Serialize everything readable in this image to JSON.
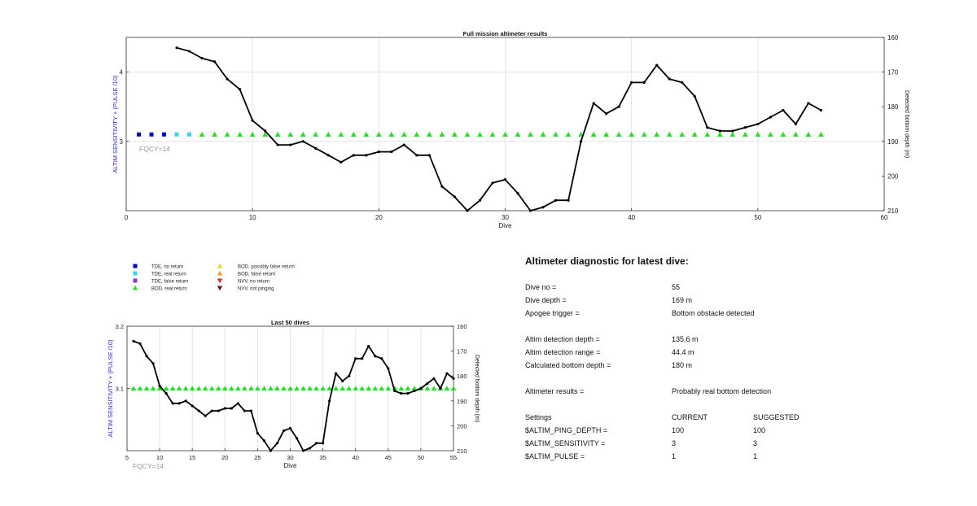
{
  "chart_data": [
    {
      "type": "line",
      "title": "Full mission altimeter results",
      "xlabel": "Dive",
      "ylabel": "ALTIM SENSITIVITY + (PULSE /10)",
      "ylabel_right": "Detected bottom depth (m)",
      "xlim": [
        0,
        60
      ],
      "xticks": [
        "0",
        "10",
        "20",
        "30",
        "40",
        "50",
        "60"
      ],
      "ylim_left": [
        2.0,
        4.5
      ],
      "yticks_left": [
        "3",
        "4"
      ],
      "ylim_right": [
        210,
        160
      ],
      "yticks_right": [
        "160",
        "170",
        "180",
        "190",
        "200",
        "210"
      ],
      "annotation": "FQCY=14",
      "grid": true,
      "series": [
        {
          "name": "Detected bottom depth",
          "axis": "right",
          "color": "#000000",
          "x": [
            4,
            5,
            6,
            7,
            8,
            9,
            10,
            11,
            12,
            13,
            14,
            15,
            16,
            17,
            18,
            19,
            20,
            21,
            22,
            23,
            24,
            25,
            26,
            27,
            28,
            29,
            30,
            31,
            32,
            33,
            34,
            35,
            36,
            37,
            38,
            39,
            40,
            41,
            42,
            43,
            44,
            45,
            46,
            47,
            48,
            49,
            50,
            51,
            52,
            53,
            54,
            55
          ],
          "y": [
            163,
            164,
            166,
            167,
            172,
            175,
            184,
            187,
            191,
            191,
            190,
            192,
            194,
            196,
            194,
            194,
            193,
            193,
            191,
            194,
            194,
            203,
            206,
            210,
            207,
            202,
            201,
            205,
            210,
            209,
            207,
            207,
            190,
            179,
            182,
            180,
            173,
            173,
            168,
            172,
            173,
            177,
            186,
            187,
            187,
            186,
            185,
            183,
            181,
            185,
            179,
            181
          ]
        },
        {
          "name": "TDE, no return",
          "marker": "square",
          "color": "#0000c8",
          "x": [
            1,
            2,
            3
          ],
          "y": [
            3.1,
            3.1,
            3.1
          ]
        },
        {
          "name": "TDE, real return",
          "marker": "square",
          "color": "#33d6f0",
          "x": [
            4,
            5
          ],
          "y": [
            3.1,
            3.1
          ]
        },
        {
          "name": "BOD, real return",
          "marker": "triangle",
          "color": "#22e022",
          "x": [
            6,
            7,
            8,
            9,
            10,
            11,
            12,
            13,
            14,
            15,
            16,
            17,
            18,
            19,
            20,
            21,
            22,
            23,
            24,
            25,
            26,
            27,
            28,
            29,
            30,
            31,
            32,
            33,
            34,
            35,
            36,
            37,
            38,
            39,
            40,
            41,
            42,
            43,
            44,
            45,
            46,
            47,
            48,
            49,
            50,
            51,
            52,
            53,
            54,
            55
          ],
          "y": [
            3.1,
            3.1,
            3.1,
            3.1,
            3.1,
            3.1,
            3.1,
            3.1,
            3.1,
            3.1,
            3.1,
            3.1,
            3.1,
            3.1,
            3.1,
            3.1,
            3.1,
            3.1,
            3.1,
            3.1,
            3.1,
            3.1,
            3.1,
            3.1,
            3.1,
            3.1,
            3.1,
            3.1,
            3.1,
            3.1,
            3.1,
            3.1,
            3.1,
            3.1,
            3.1,
            3.1,
            3.1,
            3.1,
            3.1,
            3.1,
            3.1,
            3.1,
            3.1,
            3.1,
            3.1,
            3.1,
            3.1,
            3.1,
            3.1,
            3.1
          ]
        }
      ]
    },
    {
      "type": "line",
      "title": "Last 50 dives",
      "xlabel": "Dive",
      "ylabel": "ALTIM SENSITIVITY + (PULSE /10)",
      "ylabel_right": "Detected bottom depth (m)",
      "xlim": [
        5,
        55
      ],
      "xticks": [
        "5",
        "10",
        "15",
        "20",
        "25",
        "30",
        "35",
        "40",
        "45",
        "50",
        "55"
      ],
      "ylim_left": [
        3.0,
        3.2
      ],
      "yticks_left": [
        "3.1",
        "3.2"
      ],
      "ylim_right": [
        210,
        160
      ],
      "yticks_right": [
        "160",
        "170",
        "180",
        "190",
        "200",
        "210"
      ],
      "annotation": "FQCY=14",
      "grid": true,
      "series": [
        {
          "name": "Detected bottom depth",
          "axis": "right",
          "color": "#000000",
          "x": [
            6,
            7,
            8,
            9,
            10,
            11,
            12,
            13,
            14,
            15,
            16,
            17,
            18,
            19,
            20,
            21,
            22,
            23,
            24,
            25,
            26,
            27,
            28,
            29,
            30,
            31,
            32,
            33,
            34,
            35,
            36,
            37,
            38,
            39,
            40,
            41,
            42,
            43,
            44,
            45,
            46,
            47,
            48,
            49,
            50,
            51,
            52,
            53,
            54,
            55
          ],
          "y": [
            166,
            167,
            172,
            175,
            184,
            187,
            191,
            191,
            190,
            192,
            194,
            196,
            194,
            194,
            193,
            193,
            191,
            194,
            194,
            203,
            206,
            210,
            207,
            202,
            201,
            205,
            210,
            209,
            207,
            207,
            190,
            179,
            182,
            180,
            173,
            173,
            168,
            172,
            173,
            177,
            186,
            187,
            187,
            186,
            185,
            183,
            181,
            185,
            179,
            181
          ]
        },
        {
          "name": "BOD, real return",
          "marker": "triangle",
          "color": "#22e022",
          "x": [
            6,
            7,
            8,
            9,
            10,
            11,
            12,
            13,
            14,
            15,
            16,
            17,
            18,
            19,
            20,
            21,
            22,
            23,
            24,
            25,
            26,
            27,
            28,
            29,
            30,
            31,
            32,
            33,
            34,
            35,
            36,
            37,
            38,
            39,
            40,
            41,
            42,
            43,
            44,
            45,
            46,
            47,
            48,
            49,
            50,
            51,
            52,
            53,
            54,
            55
          ],
          "y": [
            3.1,
            3.1,
            3.1,
            3.1,
            3.1,
            3.1,
            3.1,
            3.1,
            3.1,
            3.1,
            3.1,
            3.1,
            3.1,
            3.1,
            3.1,
            3.1,
            3.1,
            3.1,
            3.1,
            3.1,
            3.1,
            3.1,
            3.1,
            3.1,
            3.1,
            3.1,
            3.1,
            3.1,
            3.1,
            3.1,
            3.1,
            3.1,
            3.1,
            3.1,
            3.1,
            3.1,
            3.1,
            3.1,
            3.1,
            3.1,
            3.1,
            3.1,
            3.1,
            3.1,
            3.1,
            3.1,
            3.1,
            3.1,
            3.1,
            3.1
          ]
        }
      ]
    }
  ],
  "legend": {
    "items": [
      {
        "label": "TDE, no return",
        "marker": "square",
        "color": "#0000c8"
      },
      {
        "label": "TDE, real return",
        "marker": "square",
        "color": "#33d6f0"
      },
      {
        "label": "TDE, false return",
        "marker": "square",
        "color": "#8a3cc8"
      },
      {
        "label": "BOD, real return",
        "marker": "triangle",
        "color": "#22e022"
      },
      {
        "label": "BOD, possibly false return",
        "marker": "triangle",
        "color": "#f5d21e"
      },
      {
        "label": "BOD, false return",
        "marker": "triangle",
        "color": "#f09a1e"
      },
      {
        "label": "NVV, no return",
        "marker": "triangle-down",
        "color": "#e02a1a"
      },
      {
        "label": "NVV, not pinging",
        "marker": "triangle-down",
        "color": "#7a1010"
      }
    ]
  },
  "diagnostic": {
    "title": "Altimeter diagnostic for latest dive:",
    "rows": [
      {
        "label": "Dive no =",
        "value": "55"
      },
      {
        "label": "Dive depth =",
        "value": "169 m"
      },
      {
        "label": "Apogee trigger =",
        "value": "Bottom obstacle detected"
      },
      {
        "label": "Altim detection depth =",
        "value": "135.6 m"
      },
      {
        "label": "Altim detection range =",
        "value": "44.4 m"
      },
      {
        "label": "Calculated bottom depth =",
        "value": "180 m"
      },
      {
        "label": "Altimeter results =",
        "value": "Probably real bottom detection"
      }
    ],
    "settings_header": {
      "label": "Settings",
      "current": "CURRENT",
      "suggested": "SUGGESTED"
    },
    "settings": [
      {
        "name": "$ALTIM_PING_DEPTH =",
        "current": "100",
        "suggested": "100"
      },
      {
        "name": "$ALTIM_SENSITIVITY =",
        "current": "3",
        "suggested": "3"
      },
      {
        "name": "$ALTIM_PULSE =",
        "current": "1",
        "suggested": "1"
      }
    ]
  }
}
